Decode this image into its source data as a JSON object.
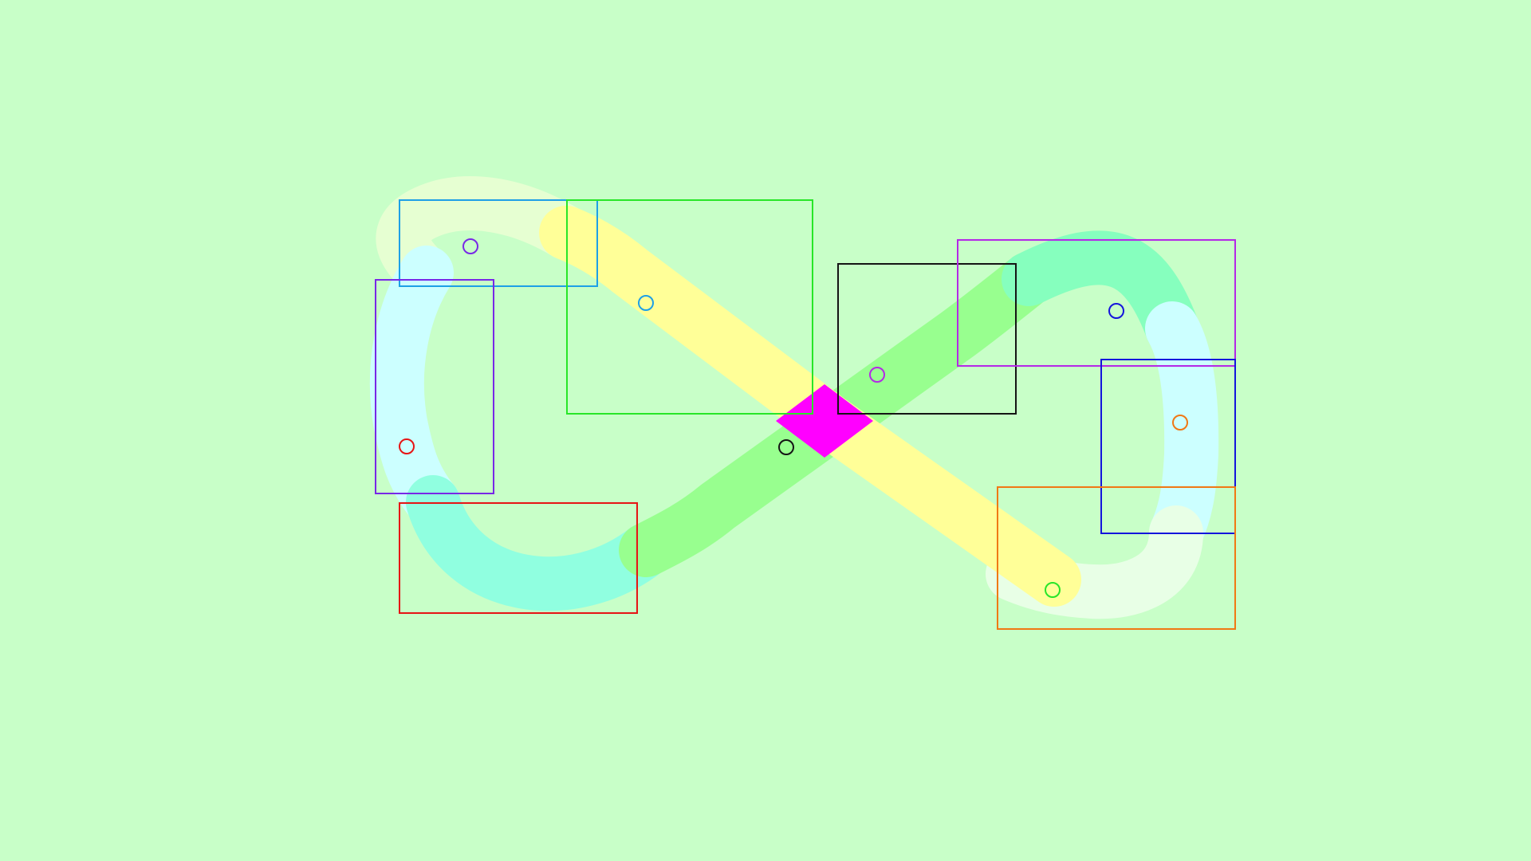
{
  "background": "#c8ffc8",
  "figure_eight": {
    "segments": [
      {
        "name": "upper-left-arc",
        "color": "#e6ffd2"
      },
      {
        "name": "left-vertical",
        "color": "#ccffff"
      },
      {
        "name": "lower-left-arc",
        "color": "#90ffe0"
      },
      {
        "name": "center-rising-band",
        "color": "#98ff8f"
      },
      {
        "name": "upper-right-arc",
        "color": "#86ffbe"
      },
      {
        "name": "right-vertical",
        "color": "#ccffff"
      },
      {
        "name": "lower-right-arc",
        "color": "#e8ffe6"
      },
      {
        "name": "center-falling-band",
        "color": "#ffff98"
      }
    ],
    "center_marker": {
      "shape": "diamond",
      "color": "#ff00ff"
    }
  },
  "regions": [
    {
      "name": "top-left",
      "color": "#1ea0e6"
    },
    {
      "name": "top-center",
      "color": "#28e628"
    },
    {
      "name": "left",
      "color": "#7828e6"
    },
    {
      "name": "bottom-left",
      "color": "#e61414"
    },
    {
      "name": "center-right",
      "color": "#141414"
    },
    {
      "name": "top-right",
      "color": "#b428e6"
    },
    {
      "name": "right",
      "color": "#1414dc"
    },
    {
      "name": "bottom-right",
      "color": "#f07814"
    }
  ],
  "markers": [
    {
      "name": "top-left",
      "color": "#7828e6"
    },
    {
      "name": "top-center",
      "color": "#1ea0e6"
    },
    {
      "name": "left",
      "color": "#e61414"
    },
    {
      "name": "center",
      "color": "#141414"
    },
    {
      "name": "center-right",
      "color": "#b428e6"
    },
    {
      "name": "top-right",
      "color": "#1414dc"
    },
    {
      "name": "right",
      "color": "#f07814"
    },
    {
      "name": "bottom-right",
      "color": "#28e628"
    }
  ]
}
